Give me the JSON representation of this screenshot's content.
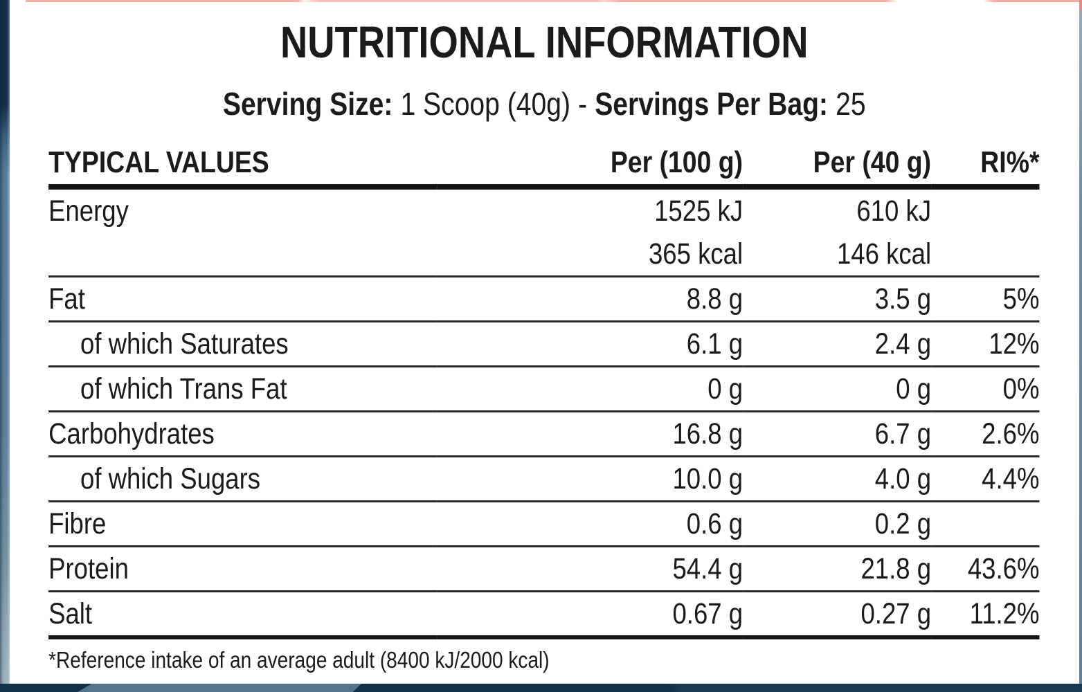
{
  "title": "NUTRITIONAL INFORMATION",
  "serving": {
    "size_label": "Serving Size:",
    "size_value": "1 Scoop (40g)",
    "separator": "-",
    "per_bag_label": "Servings Per Bag:",
    "per_bag_value": "25"
  },
  "table": {
    "columns": [
      "TYPICAL VALUES",
      "Per (100 g)",
      "Per (40 g)",
      "RI%*"
    ],
    "rows": [
      {
        "label": "Energy",
        "indent": false,
        "values": [
          [
            "1525 kJ",
            "610 kJ",
            ""
          ],
          [
            "365 kcal",
            "146 kcal",
            ""
          ]
        ]
      },
      {
        "label": "Fat",
        "indent": false,
        "values": [
          [
            "8.8 g",
            "3.5 g",
            "5%"
          ]
        ]
      },
      {
        "label": "of which Saturates",
        "indent": true,
        "values": [
          [
            "6.1 g",
            "2.4 g",
            "12%"
          ]
        ]
      },
      {
        "label": "of which Trans Fat",
        "indent": true,
        "values": [
          [
            "0 g",
            "0 g",
            "0%"
          ]
        ]
      },
      {
        "label": "Carbohydrates",
        "indent": false,
        "values": [
          [
            "16.8 g",
            "6.7 g",
            "2.6%"
          ]
        ]
      },
      {
        "label": "of which Sugars",
        "indent": true,
        "values": [
          [
            "10.0 g",
            "4.0 g",
            "4.4%"
          ]
        ]
      },
      {
        "label": "Fibre",
        "indent": false,
        "values": [
          [
            "0.6 g",
            "0.2 g",
            ""
          ]
        ]
      },
      {
        "label": "Protein",
        "indent": false,
        "values": [
          [
            "54.4 g",
            "21.8 g",
            "43.6%"
          ]
        ]
      },
      {
        "label": "Salt",
        "indent": false,
        "values": [
          [
            "0.67 g",
            "0.27 g",
            "11.2%"
          ]
        ]
      }
    ]
  },
  "footnote": "*Reference intake of an average adult (8400 kJ/2000 kcal)",
  "colors": {
    "text": "#1b1b1b",
    "label_background": "#ffffff",
    "package_navy": "#12304a",
    "package_steel_blue": "#5e7f9b",
    "package_light_blue": "#8da4b4",
    "package_accent_salmon": "#f0b2a8"
  }
}
